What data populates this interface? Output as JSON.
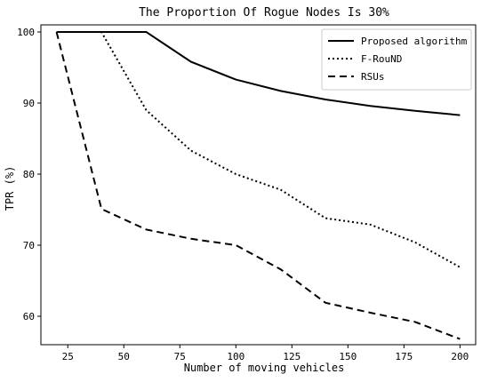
{
  "chart_data": {
    "type": "line",
    "title": "The Proportion Of Rogue Nodes Is 30%",
    "xlabel": "Number of moving vehicles",
    "ylabel": "TPR (%)",
    "xlim": [
      13,
      207
    ],
    "ylim": [
      56,
      101
    ],
    "xticks": [
      25,
      50,
      75,
      100,
      125,
      150,
      175,
      200
    ],
    "yticks": [
      60,
      70,
      80,
      90,
      100
    ],
    "grid": false,
    "legend_position": "top-right",
    "series": [
      {
        "name": "Proposed algorithm",
        "style": "solid",
        "x": [
          20,
          40,
          60,
          80,
          100,
          120,
          140,
          160,
          180,
          200
        ],
        "values": [
          100,
          100,
          100,
          95.8,
          93.3,
          91.7,
          90.5,
          89.6,
          88.9,
          88.3
        ]
      },
      {
        "name": "F-RouND",
        "style": "dotted",
        "x": [
          20,
          40,
          60,
          80,
          100,
          120,
          140,
          160,
          180,
          200
        ],
        "values": [
          100,
          100,
          89,
          83.3,
          80,
          77.8,
          73.8,
          72.9,
          70.4,
          66.9
        ]
      },
      {
        "name": "RSUs",
        "style": "dashed",
        "x": [
          20,
          40,
          60,
          80,
          100,
          120,
          140,
          160,
          180,
          200
        ],
        "values": [
          100,
          75.1,
          72.2,
          70.9,
          70.0,
          66.6,
          61.9,
          60.5,
          59.2,
          56.8
        ]
      }
    ]
  }
}
